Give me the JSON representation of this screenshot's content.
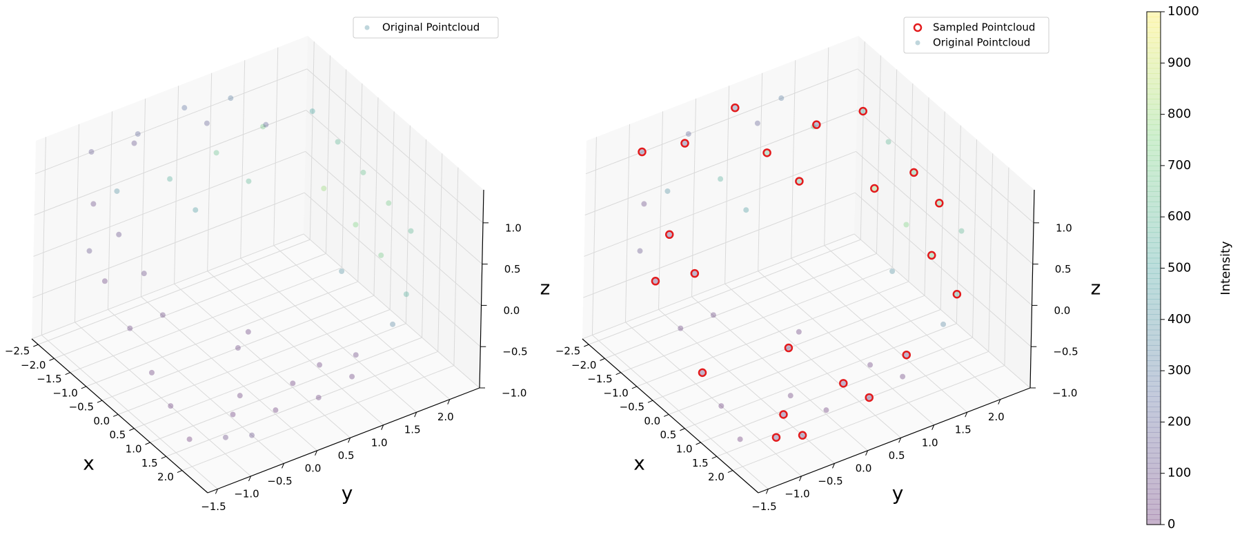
{
  "chart_data": [
    {
      "type": "scatter3d",
      "xlabel": "x",
      "ylabel": "y",
      "zlabel": "z",
      "legend": "upper right",
      "grid": true,
      "xlim": [
        -2.7,
        2.8
      ],
      "ylim": [
        -1.65,
        2.45
      ],
      "zlim": [
        -1.0,
        1.4
      ],
      "xticks": [
        {
          "value": -2.5,
          "label": "−2.5"
        },
        {
          "value": -2.0,
          "label": "−2.0"
        },
        {
          "value": -1.5,
          "label": "−1.5"
        },
        {
          "value": -1.0,
          "label": "−1.0"
        },
        {
          "value": -0.5,
          "label": "−0.5"
        },
        {
          "value": 0,
          "label": "0.0"
        },
        0.5,
        {
          "value": 1,
          "label": "1.0"
        },
        1.5,
        {
          "value": 2,
          "label": "2.0"
        }
      ],
      "yticks": [
        {
          "value": -1.5,
          "label": "−1.5"
        },
        {
          "value": -1.0,
          "label": "−1.0"
        },
        {
          "value": -0.5,
          "label": "−0.5"
        },
        {
          "value": 0,
          "label": "0.0"
        },
        0.5,
        {
          "value": 1,
          "label": "1.0"
        },
        1.5,
        {
          "value": 2,
          "label": "2.0"
        }
      ],
      "zticks": [
        {
          "value": -1.0,
          "label": "−1.0"
        },
        {
          "value": -0.5,
          "label": "−0.5"
        },
        {
          "value": 0,
          "label": "0.0"
        },
        0.5,
        {
          "value": 1,
          "label": "1.0"
        }
      ],
      "series": [
        {
          "name": "Original Pointcloud",
          "colormap": "viridis",
          "alpha": 0.3,
          "x": [
            -2.3,
            -2.3,
            -2.3,
            -2.3,
            -2.3,
            -2.3,
            -2.3,
            -2.3,
            -2.3,
            -2.3,
            -2.3,
            -1.6,
            -0.8,
            0.0,
            0.8,
            1.5,
            -1.2,
            -0.2,
            0.6,
            1.4,
            -0.6,
            1.0,
            -1.6,
            -0.8,
            0.0,
            0.6,
            -1.2,
            -0.4,
            0.3,
            0.9,
            1.5,
            -1.8,
            -1.0,
            -1.6,
            1.2,
            1.5,
            1.6,
            1.4,
            0.9,
            0.8,
            1.0,
            0.8,
            -0.3,
            -0.6,
            1.8,
            2.0
          ],
          "y": [
            -1.0,
            -0.3,
            0.4,
            1.1,
            -0.6,
            0.2,
            0.9,
            1.6,
            -1.0,
            0.6,
            1.4,
            2.0,
            2.0,
            2.0,
            2.0,
            2.0,
            2.0,
            2.0,
            2.0,
            2.0,
            2.0,
            2.0,
            -1.3,
            -1.3,
            -1.3,
            -1.3,
            -1.3,
            -1.3,
            -1.3,
            -1.3,
            -1.3,
            -0.6,
            1.0,
            0.4,
            -0.5,
            0.0,
            0.6,
            1.2,
            1.5,
            -0.2,
            0.5,
            1.0,
            0.3,
            0.6,
            -0.9,
            -0.6
          ],
          "z": [
            1.2,
            1.2,
            1.3,
            1.2,
            0.6,
            0.5,
            0.6,
            0.7,
            0.0,
            0.0,
            0.1,
            1.0,
            0.9,
            0.8,
            0.7,
            0.6,
            0.2,
            0.1,
            0.0,
            -0.2,
            -0.6,
            -0.7,
            0.9,
            0.8,
            0.6,
            0.3,
            0.1,
            -0.2,
            -0.5,
            -0.7,
            -0.9,
            1.35,
            1.35,
            1.35,
            -0.95,
            -0.95,
            -0.95,
            -0.95,
            -0.95,
            -0.95,
            -0.95,
            -0.95,
            -0.9,
            -0.9,
            -0.9,
            -0.9
          ],
          "intensity": [
            150,
            200,
            250,
            300,
            400,
            550,
            650,
            700,
            120,
            450,
            600,
            500,
            600,
            650,
            700,
            600,
            800,
            750,
            700,
            550,
            400,
            350,
            80,
            100,
            90,
            60,
            40,
            50,
            30,
            20,
            10,
            120,
            200,
            180,
            20,
            15,
            25,
            40,
            60,
            30,
            20,
            35,
            50,
            40,
            90,
            100
          ]
        }
      ]
    },
    {
      "type": "scatter3d",
      "xlabel": "x",
      "ylabel": "y",
      "zlabel": "z",
      "legend": "upper right",
      "grid": true,
      "xlim": [
        -2.7,
        2.8
      ],
      "ylim": [
        -1.65,
        2.45
      ],
      "zlim": [
        -1.0,
        1.4
      ],
      "xticks": [
        {
          "value": -2.5,
          "label": "−2.5"
        },
        {
          "value": -2.0,
          "label": "−2.0"
        },
        {
          "value": -1.5,
          "label": "−1.5"
        },
        {
          "value": -1.0,
          "label": "−1.0"
        },
        {
          "value": -0.5,
          "label": "−0.5"
        },
        {
          "value": 0,
          "label": "0.0"
        },
        0.5,
        {
          "value": 1,
          "label": "1.0"
        },
        1.5,
        {
          "value": 2,
          "label": "2.0"
        }
      ],
      "yticks": [
        {
          "value": -1.5,
          "label": "−1.5"
        },
        {
          "value": -1.0,
          "label": "−1.0"
        },
        {
          "value": -0.5,
          "label": "−0.5"
        },
        {
          "value": 0,
          "label": "0.0"
        },
        0.5,
        {
          "value": 1,
          "label": "1.0"
        },
        1.5,
        {
          "value": 2,
          "label": "2.0"
        }
      ],
      "zticks": [
        {
          "value": -1.0,
          "label": "−1.0"
        },
        {
          "value": -0.5,
          "label": "−0.5"
        },
        {
          "value": 0,
          "label": "0.0"
        },
        0.5,
        {
          "value": 1,
          "label": "1.0"
        }
      ],
      "series": [
        {
          "name": "Original Pointcloud",
          "colormap": "viridis",
          "alpha": 0.3,
          "x": [
            -2.3,
            -2.3,
            -2.3,
            -2.3,
            -2.3,
            -2.3,
            -2.3,
            -2.3,
            -2.3,
            -2.3,
            -2.3,
            -1.6,
            -0.8,
            0.0,
            0.8,
            1.5,
            -1.2,
            -0.2,
            0.6,
            1.4,
            -0.6,
            1.0,
            -1.6,
            -0.8,
            0.0,
            0.6,
            -1.2,
            -0.4,
            0.3,
            0.9,
            1.5,
            -1.8,
            -1.0,
            -1.6,
            1.2,
            1.5,
            1.6,
            1.4,
            0.9,
            0.8,
            1.0,
            0.8,
            -0.3,
            -0.6,
            1.8,
            2.0
          ],
          "y": [
            -1.0,
            -0.3,
            0.4,
            1.1,
            -0.6,
            0.2,
            0.9,
            1.6,
            -1.0,
            0.6,
            1.4,
            2.0,
            2.0,
            2.0,
            2.0,
            2.0,
            2.0,
            2.0,
            2.0,
            2.0,
            2.0,
            2.0,
            -1.3,
            -1.3,
            -1.3,
            -1.3,
            -1.3,
            -1.3,
            -1.3,
            -1.3,
            -1.3,
            -0.6,
            1.0,
            0.4,
            -0.5,
            0.0,
            0.6,
            1.2,
            1.5,
            -0.2,
            0.5,
            1.0,
            0.3,
            0.6,
            -0.9,
            -0.6
          ],
          "z": [
            1.2,
            1.2,
            1.3,
            1.2,
            0.6,
            0.5,
            0.6,
            0.7,
            0.0,
            0.0,
            0.1,
            1.0,
            0.9,
            0.8,
            0.7,
            0.6,
            0.2,
            0.1,
            0.0,
            -0.2,
            -0.6,
            -0.7,
            0.9,
            0.8,
            0.6,
            0.3,
            0.1,
            -0.2,
            -0.5,
            -0.7,
            -0.9,
            1.35,
            1.35,
            1.35,
            -0.95,
            -0.95,
            -0.95,
            -0.95,
            -0.95,
            -0.95,
            -0.95,
            -0.95,
            -0.9,
            -0.9,
            -0.9,
            -0.9
          ],
          "intensity": [
            150,
            200,
            250,
            300,
            400,
            550,
            650,
            700,
            120,
            450,
            600,
            500,
            600,
            650,
            700,
            600,
            800,
            750,
            700,
            550,
            400,
            350,
            80,
            100,
            90,
            60,
            40,
            50,
            30,
            20,
            10,
            120,
            200,
            180,
            20,
            15,
            25,
            40,
            60,
            30,
            20,
            35,
            50,
            40,
            90,
            100
          ]
        },
        {
          "name": "Sampled Pointcloud",
          "color": "#e31a1c",
          "marker": "hollow",
          "x": [
            -2.3,
            -2.3,
            -2.3,
            -2.3,
            -1.6,
            0.0,
            0.8,
            -1.2,
            0.6,
            1.4,
            -0.8,
            0.0,
            -1.2,
            0.3,
            -1.8,
            -1.0,
            1.2,
            1.6,
            0.9,
            1.0,
            -0.3,
            1.8,
            2.0
          ],
          "y": [
            -1.0,
            0.4,
            0.9,
            1.4,
            2.0,
            2.0,
            2.0,
            2.0,
            2.0,
            2.0,
            -1.3,
            -1.3,
            -1.3,
            -1.3,
            -0.6,
            1.0,
            -0.5,
            0.6,
            1.5,
            0.5,
            0.3,
            -0.9,
            -0.6
          ],
          "z": [
            1.2,
            1.3,
            0.6,
            0.1,
            1.0,
            0.8,
            0.7,
            0.2,
            0.0,
            -0.2,
            0.8,
            0.6,
            0.1,
            -0.5,
            1.35,
            1.35,
            -0.95,
            -0.95,
            -0.95,
            -0.95,
            -0.9,
            -0.9,
            -0.9
          ]
        }
      ]
    },
    {
      "type": "colorbar",
      "label": "Intensity",
      "colormap": "viridis",
      "alpha": 0.3,
      "lim": [
        0,
        1000
      ],
      "ticks": [
        0,
        100,
        200,
        300,
        400,
        500,
        600,
        700,
        800,
        900,
        1000
      ]
    }
  ]
}
